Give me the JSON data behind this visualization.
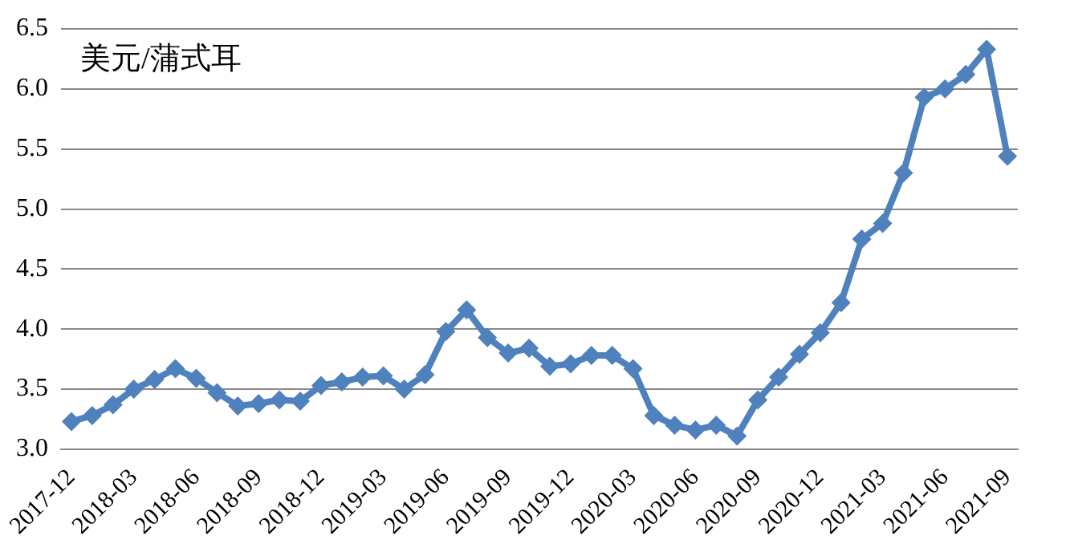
{
  "chart_data": {
    "type": "line",
    "annotations": [
      "美元/蒲式耳"
    ],
    "categories": [
      "2017-12",
      null,
      null,
      "2018-03",
      null,
      null,
      "2018-06",
      null,
      null,
      "2018-09",
      null,
      null,
      "2018-12",
      null,
      null,
      "2019-03",
      null,
      null,
      "2019-06",
      null,
      null,
      "2019-09",
      null,
      null,
      "2019-12",
      null,
      null,
      "2020-03",
      null,
      null,
      "2020-06",
      null,
      null,
      "2020-09",
      null,
      null,
      "2020-12",
      null,
      null,
      "2021-03",
      null,
      null,
      "2021-06",
      null,
      null,
      "2021-09"
    ],
    "series": [
      {
        "color": "#4f81bd",
        "values": [
          3.23,
          3.28,
          3.37,
          3.5,
          3.58,
          3.67,
          3.59,
          3.47,
          3.36,
          3.38,
          3.41,
          3.4,
          3.53,
          3.56,
          3.6,
          3.61,
          3.5,
          3.62,
          3.98,
          4.16,
          3.93,
          3.8,
          3.84,
          3.69,
          3.71,
          3.78,
          3.78,
          3.67,
          3.28,
          3.2,
          3.16,
          3.2,
          3.11,
          3.41,
          3.6,
          3.79,
          3.97,
          4.22,
          4.75,
          4.88,
          5.3,
          5.93,
          6.0,
          6.12,
          6.33,
          5.44
        ]
      }
    ],
    "ylim": [
      3.0,
      6.5
    ],
    "yticks": [
      {
        "value": 3.0,
        "label": "3.0"
      },
      {
        "value": 3.5,
        "label": "3.5"
      },
      {
        "value": 4.0,
        "label": "4.0"
      },
      {
        "value": 4.5,
        "label": "4.5"
      },
      {
        "value": 5.0,
        "label": "5.0"
      },
      {
        "value": 5.5,
        "label": "5.5"
      },
      {
        "value": 6.0,
        "label": "6.0"
      },
      {
        "value": 6.5,
        "label": "6.5"
      }
    ],
    "grid": "y",
    "legend": false,
    "marker": "diamond",
    "line_style": "solid"
  }
}
